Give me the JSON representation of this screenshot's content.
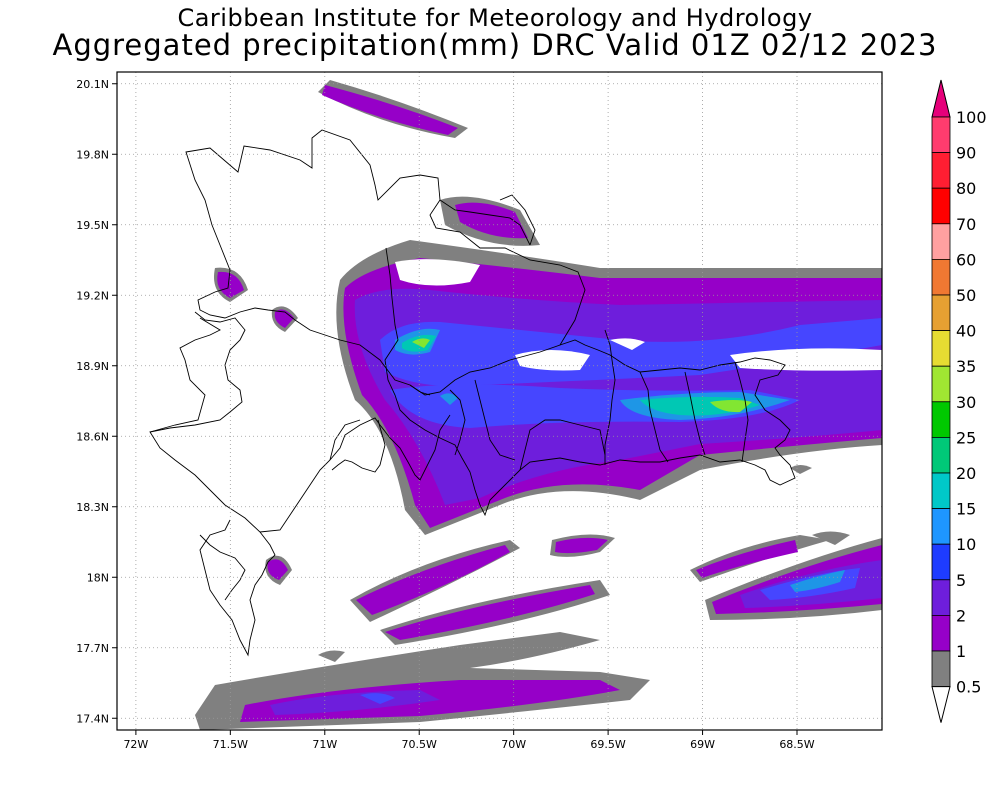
{
  "header": {
    "institute": "Caribbean Institute for Meteorology and Hydrology",
    "product": "Aggregated precipitation(mm) DRC Valid 01Z 02/12 2023"
  },
  "map": {
    "lon_range": [
      -72.1,
      -68.05
    ],
    "lat_range": [
      17.35,
      20.15
    ],
    "lon_ticks": [
      {
        "value": -72.0,
        "label": "72W"
      },
      {
        "value": -71.5,
        "label": "71.5W"
      },
      {
        "value": -71.0,
        "label": "71W"
      },
      {
        "value": -70.5,
        "label": "70.5W"
      },
      {
        "value": -70.0,
        "label": "70W"
      },
      {
        "value": -69.5,
        "label": "69.5W"
      },
      {
        "value": -69.0,
        "label": "69W"
      },
      {
        "value": -68.5,
        "label": "68.5W"
      }
    ],
    "lat_ticks": [
      {
        "value": 17.4,
        "label": "17.4N"
      },
      {
        "value": 17.7,
        "label": "17.7N"
      },
      {
        "value": 18.0,
        "label": "18N"
      },
      {
        "value": 18.3,
        "label": "18.3N"
      },
      {
        "value": 18.6,
        "label": "18.6N"
      },
      {
        "value": 18.9,
        "label": "18.9N"
      },
      {
        "value": 19.2,
        "label": "19.2N"
      },
      {
        "value": 19.5,
        "label": "19.5N"
      },
      {
        "value": 19.8,
        "label": "19.8N"
      },
      {
        "value": 20.1,
        "label": "20.1N"
      }
    ],
    "grid": true,
    "colors": {
      "c1": "#808080",
      "c2": "#9600c8",
      "c5": "#6e1edc",
      "c10": "#4646ff",
      "c20": "#1e96e6",
      "c25": "#00c8b4",
      "c30": "#00c86e",
      "c35": "#82e632"
    }
  },
  "colorbar": {
    "levels": [
      {
        "label": "100",
        "color": "#ff3c6e"
      },
      {
        "label": "90",
        "color": "#ff1e32"
      },
      {
        "label": "80",
        "color": "#ff0000"
      },
      {
        "label": "70",
        "color": "#ffa0a0"
      },
      {
        "label": "60",
        "color": "#f07832"
      },
      {
        "label": "50",
        "color": "#e6a032"
      },
      {
        "label": "40",
        "color": "#e6dc32"
      },
      {
        "label": "35",
        "color": "#a0e632"
      },
      {
        "label": "30",
        "color": "#00c800"
      },
      {
        "label": "25",
        "color": "#00c878"
      },
      {
        "label": "20",
        "color": "#00c8c8"
      },
      {
        "label": "15",
        "color": "#1e96ff"
      },
      {
        "label": "10",
        "color": "#1e3cff"
      },
      {
        "label": "5",
        "color": "#6e1edc"
      },
      {
        "label": "2",
        "color": "#9600c8"
      },
      {
        "label": "1",
        "color": "#808080"
      },
      {
        "label": "0.5",
        "color": "#ffffff"
      }
    ],
    "top_arrow_color": "#e6007a"
  }
}
